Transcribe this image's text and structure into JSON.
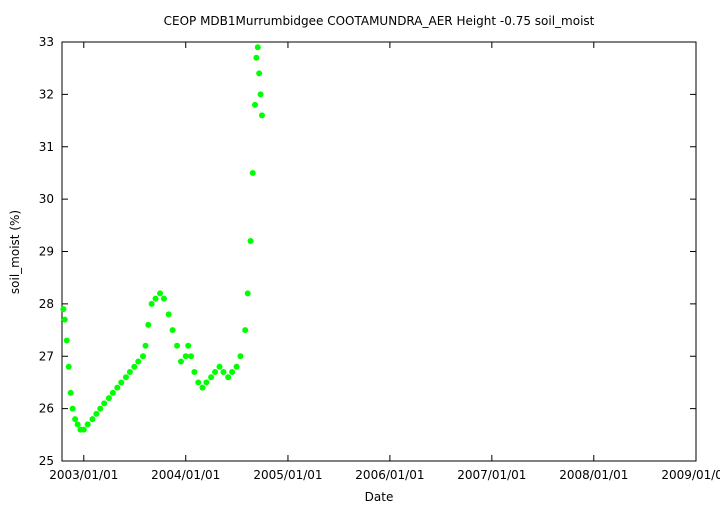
{
  "chart_data": {
    "type": "scatter",
    "title": "CEOP MDB1Murrumbidgee COOTAMUNDRA_AER Height -0.75 soil_moist",
    "xlabel": "Date",
    "ylabel": "soil_moist (%)",
    "xlim": [
      "2002-10-15",
      "2009-01-01"
    ],
    "ylim": [
      25,
      33
    ],
    "x_ticks": [
      "2003/01/01",
      "2004/01/01",
      "2005/01/01",
      "2006/01/01",
      "2007/01/01",
      "2008/01/01",
      "2009/01/01"
    ],
    "y_ticks": [
      25,
      26,
      27,
      28,
      29,
      30,
      31,
      32,
      33
    ],
    "grid": false,
    "series": [
      {
        "color": "#00ff00",
        "marker": "circle",
        "points": [
          [
            "2002-10-20",
            27.9
          ],
          [
            "2002-10-25",
            27.7
          ],
          [
            "2002-11-01",
            27.3
          ],
          [
            "2002-11-08",
            26.8
          ],
          [
            "2002-11-15",
            26.3
          ],
          [
            "2002-11-22",
            26.0
          ],
          [
            "2002-12-01",
            25.8
          ],
          [
            "2002-12-10",
            25.7
          ],
          [
            "2002-12-20",
            25.6
          ],
          [
            "2003-01-01",
            25.6
          ],
          [
            "2003-01-15",
            25.7
          ],
          [
            "2003-02-01",
            25.8
          ],
          [
            "2003-02-15",
            25.9
          ],
          [
            "2003-03-01",
            26.0
          ],
          [
            "2003-03-15",
            26.1
          ],
          [
            "2003-04-01",
            26.2
          ],
          [
            "2003-04-15",
            26.3
          ],
          [
            "2003-05-01",
            26.4
          ],
          [
            "2003-05-15",
            26.5
          ],
          [
            "2003-06-01",
            26.6
          ],
          [
            "2003-06-15",
            26.7
          ],
          [
            "2003-07-01",
            26.8
          ],
          [
            "2003-07-15",
            26.9
          ],
          [
            "2003-08-01",
            27.0
          ],
          [
            "2003-08-10",
            27.2
          ],
          [
            "2003-08-20",
            27.6
          ],
          [
            "2003-09-01",
            28.0
          ],
          [
            "2003-09-15",
            28.1
          ],
          [
            "2003-10-01",
            28.2
          ],
          [
            "2003-10-15",
            28.1
          ],
          [
            "2003-11-01",
            27.8
          ],
          [
            "2003-11-15",
            27.5
          ],
          [
            "2003-12-01",
            27.2
          ],
          [
            "2003-12-15",
            26.9
          ],
          [
            "2004-01-01",
            27.0
          ],
          [
            "2004-01-10",
            27.2
          ],
          [
            "2004-01-20",
            27.0
          ],
          [
            "2004-02-01",
            26.7
          ],
          [
            "2004-02-15",
            26.5
          ],
          [
            "2004-03-01",
            26.4
          ],
          [
            "2004-03-15",
            26.5
          ],
          [
            "2004-04-01",
            26.6
          ],
          [
            "2004-04-15",
            26.7
          ],
          [
            "2004-05-01",
            26.8
          ],
          [
            "2004-05-15",
            26.7
          ],
          [
            "2004-06-01",
            26.6
          ],
          [
            "2004-06-15",
            26.7
          ],
          [
            "2004-07-01",
            26.8
          ],
          [
            "2004-07-15",
            27.0
          ],
          [
            "2004-08-01",
            27.5
          ],
          [
            "2004-08-10",
            28.2
          ],
          [
            "2004-08-20",
            29.2
          ],
          [
            "2004-08-28",
            30.5
          ],
          [
            "2004-09-05",
            31.8
          ],
          [
            "2004-09-10",
            32.7
          ],
          [
            "2004-09-15",
            32.9
          ],
          [
            "2004-09-20",
            32.4
          ],
          [
            "2004-09-25",
            32.0
          ],
          [
            "2004-09-30",
            31.6
          ]
        ]
      }
    ]
  }
}
